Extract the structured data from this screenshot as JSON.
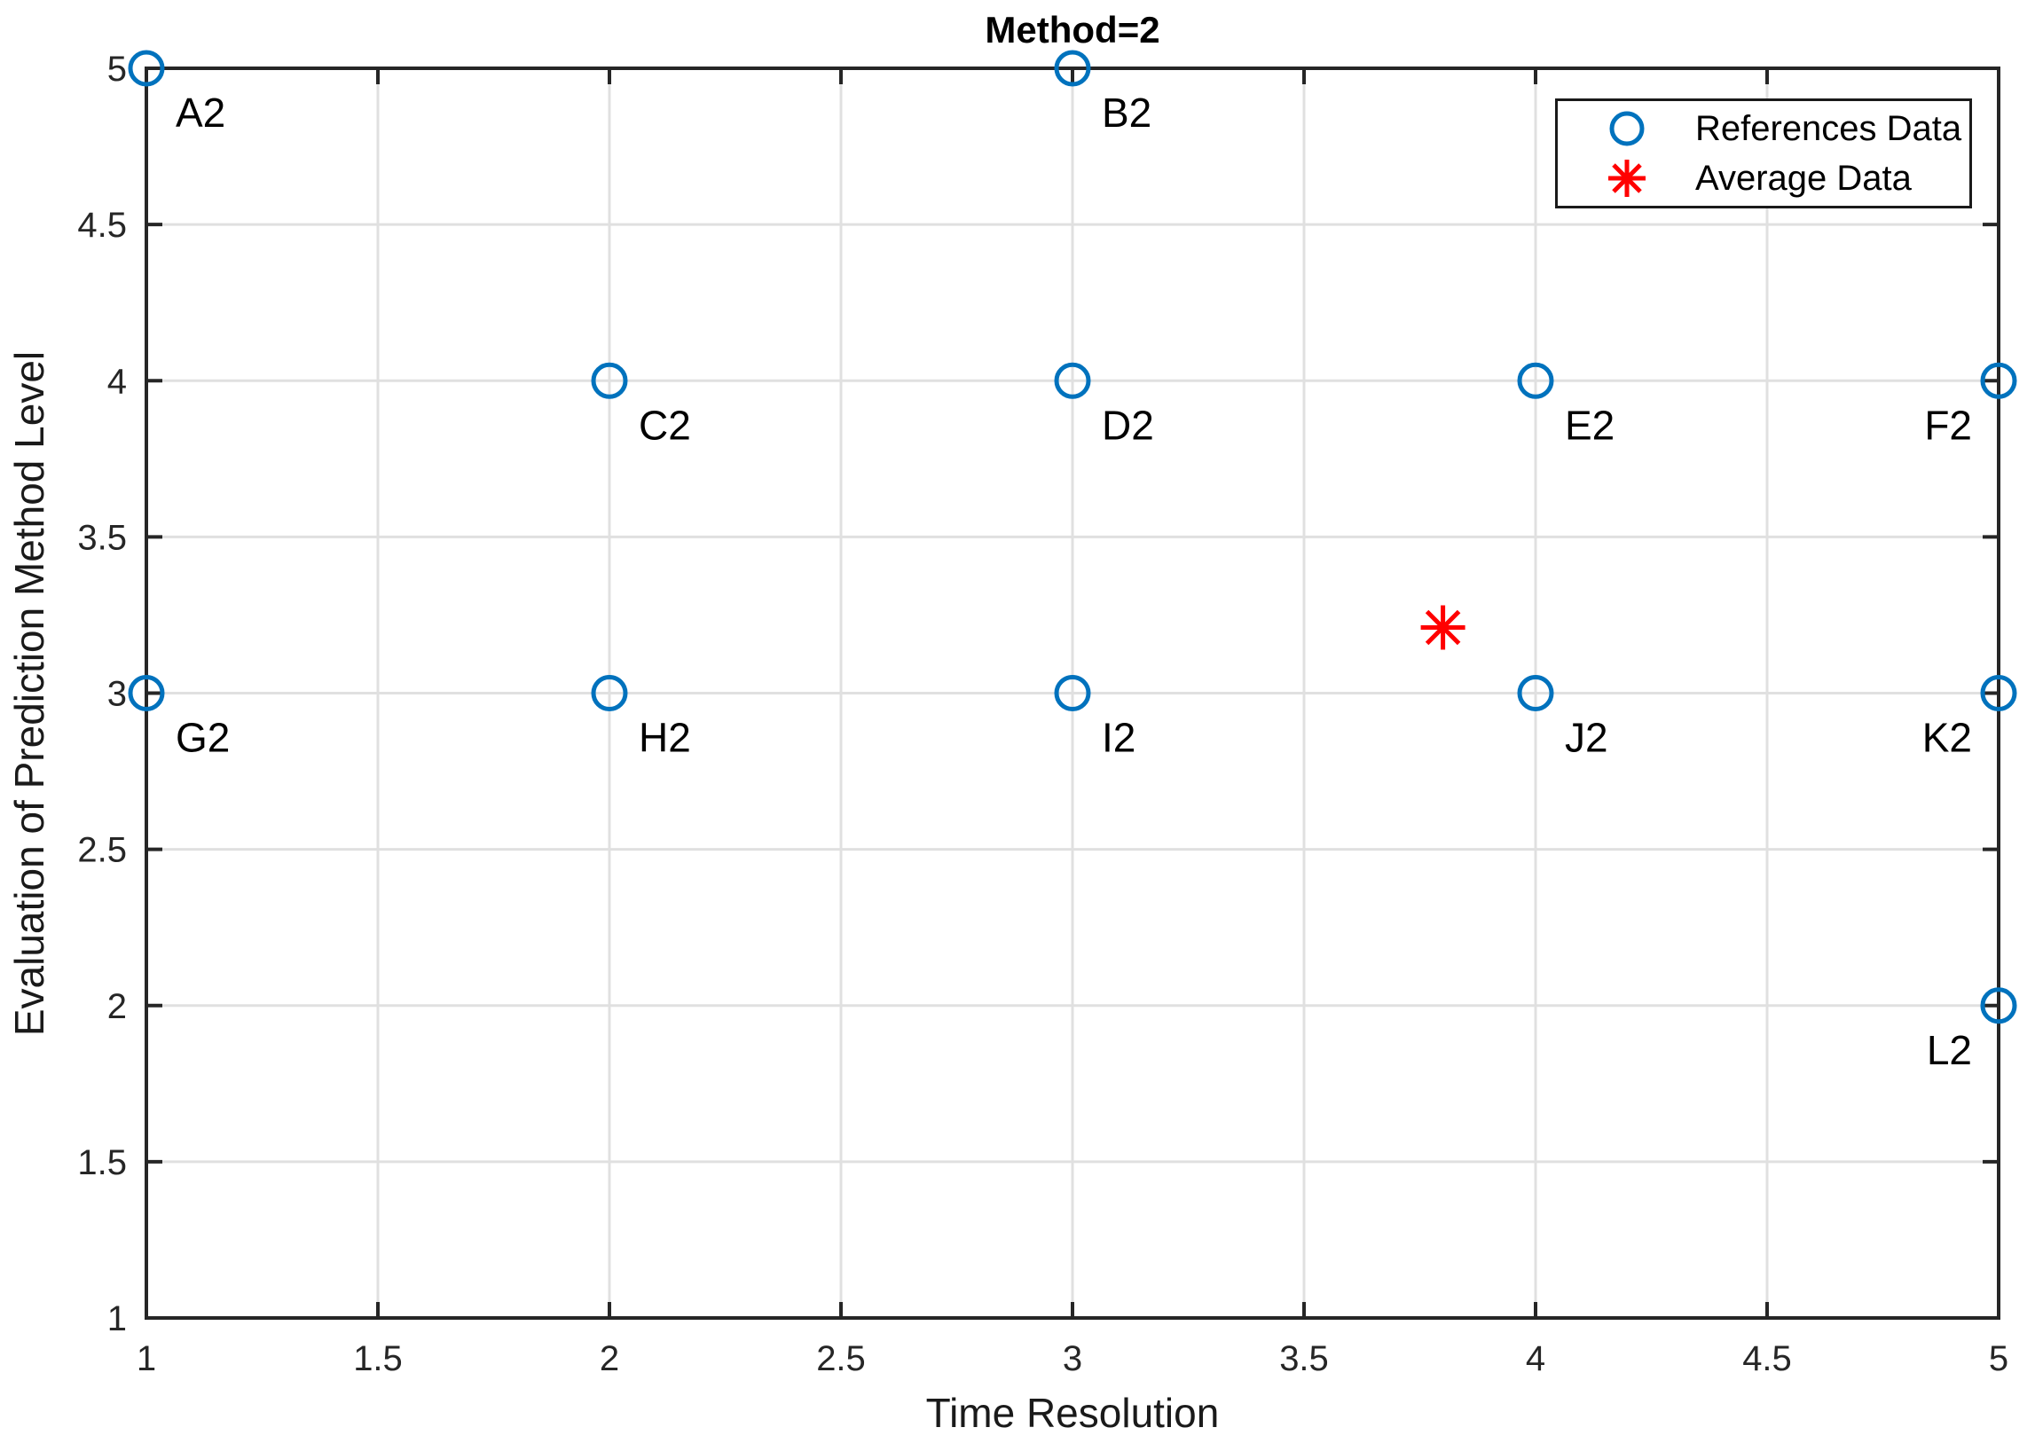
{
  "figure": {
    "background": "#ffffff",
    "axis_color": "#262626",
    "grid_color": "#e0e0e0",
    "tick_label_color": "#262626"
  },
  "chart_data": {
    "type": "scatter",
    "title": "Method=2",
    "xlabel": "Time Resolution",
    "ylabel": "Evaluation of Prediction Method Level",
    "xlim": [
      1,
      5
    ],
    "ylim": [
      1,
      5
    ],
    "xticks": [
      "1",
      "1.5",
      "2",
      "2.5",
      "3",
      "3.5",
      "4",
      "4.5",
      "5"
    ],
    "yticks": [
      "1",
      "1.5",
      "2",
      "2.5",
      "3",
      "3.5",
      "4",
      "4.5",
      "5"
    ],
    "grid": true,
    "legend_position": "top-right",
    "series": [
      {
        "name": "References Data",
        "marker": "circle",
        "color": "#0072BD",
        "points": [
          {
            "label": "A2",
            "x": 1,
            "y": 5,
            "labelSide": "right"
          },
          {
            "label": "B2",
            "x": 3,
            "y": 5,
            "labelSide": "right"
          },
          {
            "label": "C2",
            "x": 2,
            "y": 4,
            "labelSide": "right"
          },
          {
            "label": "D2",
            "x": 3,
            "y": 4,
            "labelSide": "right"
          },
          {
            "label": "E2",
            "x": 4,
            "y": 4,
            "labelSide": "right"
          },
          {
            "label": "F2",
            "x": 5,
            "y": 4,
            "labelSide": "left"
          },
          {
            "label": "G2",
            "x": 1,
            "y": 3,
            "labelSide": "right"
          },
          {
            "label": "H2",
            "x": 2,
            "y": 3,
            "labelSide": "right"
          },
          {
            "label": "I2",
            "x": 3,
            "y": 3,
            "labelSide": "right"
          },
          {
            "label": "J2",
            "x": 4,
            "y": 3,
            "labelSide": "right"
          },
          {
            "label": "K2",
            "x": 5,
            "y": 3,
            "labelSide": "left"
          },
          {
            "label": "L2",
            "x": 5,
            "y": 2,
            "labelSide": "left"
          }
        ]
      },
      {
        "name": "Average Data",
        "marker": "asterisk",
        "color": "#ff0000",
        "points": [
          {
            "x": 3.8,
            "y": 3.21
          }
        ]
      }
    ]
  }
}
